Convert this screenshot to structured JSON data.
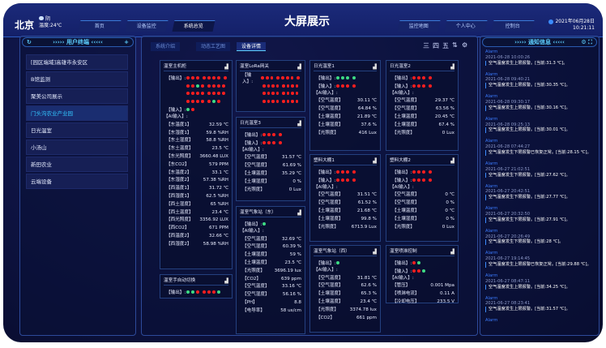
{
  "header": {
    "city": "北京",
    "weather": "阴",
    "temperature": "温度:24℃",
    "title": "大屏展示",
    "nav_left": [
      "首页",
      "设备监控",
      "系统总览"
    ],
    "nav_right": [
      "监控地图",
      "个人中心",
      "控制台"
    ],
    "date": "2021年06月28日",
    "time": "10:21:11",
    "active_nav": "系统总览"
  },
  "left_panel": {
    "title": "用户终端",
    "items": [
      "[园区端域]高雄市永安区",
      "B馆监测",
      "聚美公司展示",
      "门头沟农业产业园",
      "日光温室",
      "小汤山",
      "新田农业",
      "云端设备"
    ],
    "active_index": 3
  },
  "center": {
    "tabs": [
      "系统介绍",
      "动态工艺图",
      "设备详情"
    ],
    "active_tab": 2,
    "toolbar": [
      "三",
      "四",
      "五",
      "⇅",
      "⚙"
    ],
    "colors": {
      "red": "#ff1e1e",
      "green": "#3ddc84"
    },
    "cards": [
      {
        "title": "温室主机柜",
        "groups": [
          {
            "label": "【输出】:",
            "lines": [
              [
                "red",
                "red",
                "red",
                "red",
                "red",
                "red",
                "red",
                "red"
              ],
              [
                "red",
                "red",
                "green",
                "red",
                "red",
                "red",
                "red",
                "red"
              ],
              [
                "red",
                "red",
                "red",
                "red",
                "red",
                "red",
                "red",
                "red"
              ],
              [
                "red",
                "red",
                "red",
                "red",
                "red",
                "green",
                "red"
              ]
            ]
          },
          {
            "label": "【输入】:",
            "lines": [
              [
                "green",
                "red"
              ]
            ]
          }
        ],
        "ai_label": "【AI输入】:",
        "values": [
          [
            "【东温度1】",
            "32.59 ℃"
          ],
          [
            "【东湿度1】",
            "59.8 %RH"
          ],
          [
            "【东土湿度】",
            "58.8 %RH"
          ],
          [
            "【东土温度】",
            "23.5 ℃"
          ],
          [
            "【东光照度】",
            "3660.48 LUX"
          ],
          [
            "【东CO2】",
            "579 PPM"
          ],
          [
            "【东温度2】",
            "33.1 ℃"
          ],
          [
            "【东湿度2】",
            "57.38 %RH"
          ],
          [
            "【西温度1】",
            "31.72 ℃"
          ],
          [
            "【西湿度1】",
            "62.5 %RH"
          ],
          [
            "【西土湿度】",
            "65 %RH"
          ],
          [
            "【西土温度】",
            "23.4 ℃"
          ],
          [
            "【西光照度】",
            "3356.92 LUX"
          ],
          [
            "【西CO2】",
            "671 PPM"
          ],
          [
            "【西温度2】",
            "32.66 ℃"
          ],
          [
            "【西湿度2】",
            "58.98 %RH"
          ]
        ]
      },
      {
        "title": "温室手自动切换",
        "groups": [
          {
            "label": "【输出】:",
            "lines": [
              [
                "green",
                "green",
                "red",
                "red",
                "red",
                "red",
                "green"
              ]
            ]
          }
        ],
        "values": []
      },
      {
        "title": "温室LoRa网关",
        "groups": [
          {
            "label": "【输入】:",
            "lines": [
              [
                "red",
                "red",
                "red",
                "red",
                "red",
                "red",
                "red",
                "red"
              ],
              [
                "red",
                "red",
                "red",
                "red",
                "red",
                "red",
                "red",
                "red"
              ],
              [
                "red",
                "red",
                "red",
                "red",
                "red",
                "red",
                "red",
                "red"
              ],
              [
                "red",
                "red",
                "red",
                "red",
                "red",
                "red",
                "red",
                "red"
              ]
            ]
          }
        ],
        "values": []
      },
      {
        "title": "日光温室3",
        "groups": [
          {
            "label": "【输出】:",
            "lines": [
              [
                "red",
                "red",
                "red",
                "red"
              ]
            ]
          },
          {
            "label": "【输入】:",
            "lines": [
              [
                "red",
                "red",
                "red",
                "red"
              ]
            ]
          }
        ],
        "ai_label": "【AI输入】:",
        "values": [
          [
            "【空气温度】",
            "31.57 ℃"
          ],
          [
            "【空气湿度】",
            "61.69 %"
          ],
          [
            "【土壤温度】",
            "35.29 ℃"
          ],
          [
            "【土壤湿度】",
            "0 %"
          ],
          [
            "【光照度】",
            "0 Lux"
          ]
        ]
      },
      {
        "title": "温室气象站（东）",
        "groups": [
          {
            "label": "【输出】:",
            "lines": [
              [
                "green"
              ]
            ]
          }
        ],
        "ai_label": "【AI输入】:",
        "values": [
          [
            "【空气温度】",
            "32.69 ℃"
          ],
          [
            "【空气湿度】",
            "60.39 %"
          ],
          [
            "【土壤湿度】",
            "59 %"
          ],
          [
            "【土壤温度】",
            "23.5 ℃"
          ],
          [
            "【光照度】",
            "3696.19 lux"
          ],
          [
            "【CO2】",
            "639 ppm"
          ],
          [
            "【空气温度】",
            "33.16 ℃"
          ],
          [
            "【空气湿度】",
            "56.16 %"
          ],
          [
            "【PH】",
            "8.8"
          ],
          [
            "【电导率】",
            "58 us/cm"
          ]
        ]
      },
      {
        "title": "日光温室1",
        "groups": [
          {
            "label": "【输出】:",
            "lines": [
              [
                "green",
                "green",
                "green",
                "green"
              ]
            ]
          },
          {
            "label": "【输入】:",
            "lines": [
              [
                "red",
                "red",
                "red",
                "red"
              ]
            ]
          }
        ],
        "ai_label": "【AI输入】:",
        "values": [
          [
            "【空气温度】",
            "30.11 ℃"
          ],
          [
            "【空气湿度】",
            "64.84 %"
          ],
          [
            "【土壤温度】",
            "21.89 ℃"
          ],
          [
            "【土壤湿度】",
            "37.6 %"
          ],
          [
            "【光照度】",
            "416 Lux"
          ]
        ]
      },
      {
        "title": "塑料大棚1",
        "groups": [
          {
            "label": "【输出】:",
            "lines": [
              [
                "red",
                "red",
                "red",
                "red"
              ]
            ]
          },
          {
            "label": "【输入】:",
            "lines": [
              [
                "red",
                "red",
                "red",
                "red"
              ]
            ]
          }
        ],
        "ai_label": "【AI输入】:",
        "values": [
          [
            "【空气温度】",
            "31.51 ℃"
          ],
          [
            "【空气湿度】",
            "61.52 %"
          ],
          [
            "【土壤温度】",
            "21.68 ℃"
          ],
          [
            "【土壤湿度】",
            "99.8 %"
          ],
          [
            "【光照度】",
            "6713.9 Lux"
          ]
        ]
      },
      {
        "title": "温室气象站（西）",
        "groups": [
          {
            "label": "【输出】:",
            "lines": [
              [
                "green"
              ]
            ]
          }
        ],
        "ai_label": "【AI输入】:",
        "values": [
          [
            "【空气温度】",
            "31.81 ℃"
          ],
          [
            "【空气湿度】",
            "62.6 %"
          ],
          [
            "【土壤湿度】",
            "65.3 %"
          ],
          [
            "【土壤温度】",
            "23.4 ℃"
          ],
          [
            "【光照度】",
            "3374.78 lux"
          ],
          [
            "【CO2】",
            "661 ppm"
          ]
        ]
      },
      {
        "title": "日光温室2",
        "groups": [
          {
            "label": "【输出】:",
            "lines": [
              [
                "red",
                "red",
                "red",
                "red"
              ]
            ]
          },
          {
            "label": "【输入】:",
            "lines": [
              [
                "red",
                "red",
                "red",
                "red"
              ]
            ]
          }
        ],
        "ai_label": "【AI输入】:",
        "values": [
          [
            "【空气温度】",
            "29.37 ℃"
          ],
          [
            "【空气湿度】",
            "63.56 %"
          ],
          [
            "【土壤温度】",
            "20.45 ℃"
          ],
          [
            "【土壤湿度】",
            "67.4 %"
          ],
          [
            "【光照度】",
            "0 Lux"
          ]
        ]
      },
      {
        "title": "塑料大棚2",
        "groups": [
          {
            "label": "【输出】:",
            "lines": [
              [
                "red",
                "red",
                "red",
                "red"
              ]
            ]
          },
          {
            "label": "【输入】:",
            "lines": [
              [
                "red",
                "red",
                "red",
                "red"
              ]
            ]
          }
        ],
        "ai_label": "【AI输入】:",
        "values": [
          [
            "【空气温度】",
            "0 ℃"
          ],
          [
            "【空气湿度】",
            "0 %"
          ],
          [
            "【土壤温度】",
            "0 ℃"
          ],
          [
            "【土壤湿度】",
            "0 %"
          ],
          [
            "【光照度】",
            "0 Lux"
          ]
        ]
      },
      {
        "title": "温室喷淋控制",
        "groups": [
          {
            "label": "【输出】:",
            "lines": [
              [
                "red",
                "green"
              ]
            ]
          },
          {
            "label": "【输入】:",
            "lines": [
              [
                "red",
                "red",
                "green"
              ]
            ]
          }
        ],
        "ai_label": "【AI输入】:",
        "values": [
          [
            "【管压】",
            "0.001 Mpa"
          ],
          [
            "【喷淋电流】",
            "0.11 A"
          ],
          [
            "【冷却电压】",
            "233.5 V"
          ]
        ]
      }
    ]
  },
  "right_panel": {
    "title": "通知信息",
    "alarms": [
      {
        "level": "Alarm",
        "time": "2021-06-28 10:00:26",
        "msg": "空气温度发生上限报警。[当前:31.3 ℃]。"
      },
      {
        "level": "Alarm",
        "time": "2021-06-28 09:40:21",
        "msg": "空气温度发生上限报警。[当前:30.35 ℃]。"
      },
      {
        "level": "Alarm",
        "time": "2021-06-28 09:30:17",
        "msg": "空气温度发生上限报警。[当前:30.16 ℃]。"
      },
      {
        "level": "Alarm",
        "time": "2021-06-28 09:25:13",
        "msg": "空气温度发生上限报警。[当前:30.01 ℃]。"
      },
      {
        "level": "Alarm",
        "time": "2021-06-28 07:44:27",
        "msg": "空气温度发生下限报警已恢复正常。[当前:28.15 ℃]。"
      },
      {
        "level": "Alarm",
        "time": "2021-06-27 21:02:51",
        "msg": "空气温度发生下限报警。[当前:27.62 ℃]。"
      },
      {
        "level": "Alarm",
        "time": "2021-06-27 20:42:51",
        "msg": "空气温度发生下限报警。[当前:27.77 ℃]。"
      },
      {
        "level": "Alarm",
        "time": "2021-06-27 20:32:50",
        "msg": "空气温度发生下限报警。[当前:27.91 ℃]。"
      },
      {
        "level": "Alarm",
        "time": "2021-06-27 20:26:49",
        "msg": "空气温度发生下限报警。[当前:28 ℃]。"
      },
      {
        "level": "Alarm",
        "time": "2021-06-27 19:14:45",
        "msg": "空气温度发生上限报警已恢复正常。[当前:29.88 ℃]。"
      },
      {
        "level": "Alarm",
        "time": "2021-06-27 08:47:11",
        "msg": "空气温度发生上限报警。[当前:34.25 ℃]。"
      },
      {
        "level": "Alarm",
        "time": "2021-06-27 08:23:41",
        "msg": "空气温度发生上限报警。[当前:31.57 ℃]。"
      },
      {
        "level": "Alarm",
        "time": "",
        "msg": ""
      }
    ]
  }
}
